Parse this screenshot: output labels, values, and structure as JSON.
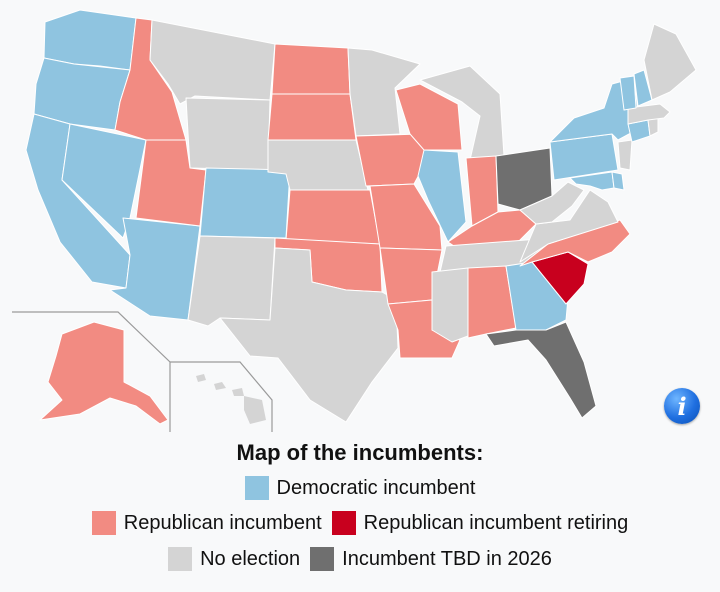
{
  "legend": {
    "title": "Map of the incumbents:",
    "items": [
      {
        "key": "dem",
        "label": "Democratic incumbent",
        "color": "#8fc4e0"
      },
      {
        "key": "rep",
        "label": "Republican incumbent",
        "color": "#f28b82"
      },
      {
        "key": "rep_retiring",
        "label": "Republican incumbent retiring",
        "color": "#c8001e"
      },
      {
        "key": "none",
        "label": "No election",
        "color": "#d4d4d4"
      },
      {
        "key": "tbd",
        "label": "Incumbent TBD in 2026",
        "color": "#6f6f6f"
      }
    ]
  },
  "info_icon": "info-icon",
  "states": {
    "WA": "dem",
    "OR": "dem",
    "CA": "dem",
    "NV": "dem",
    "AZ": "dem",
    "CO": "dem",
    "NM": "none",
    "ID": "rep",
    "MT": "none",
    "WY": "none",
    "UT": "rep",
    "ND": "rep",
    "SD": "rep",
    "NE": "none",
    "KS": "rep",
    "OK": "rep",
    "TX": "none",
    "MN": "none",
    "IA": "rep",
    "MO": "rep",
    "AR": "rep",
    "LA": "rep",
    "WI": "rep",
    "IL": "dem",
    "MI": "none",
    "IN": "rep",
    "OH": "tbd",
    "KY": "rep",
    "TN": "none",
    "MS": "none",
    "AL": "rep",
    "GA": "dem",
    "FL": "tbd",
    "SC": "rep_retiring",
    "NC": "rep",
    "VA": "none",
    "WV": "none",
    "PA": "dem",
    "NY": "dem",
    "MD": "dem",
    "DE": "dem",
    "NJ": "none",
    "CT": "dem",
    "RI": "none",
    "MA": "none",
    "VT": "dem",
    "NH": "dem",
    "ME": "none",
    "AK": "rep",
    "HI": "none"
  }
}
